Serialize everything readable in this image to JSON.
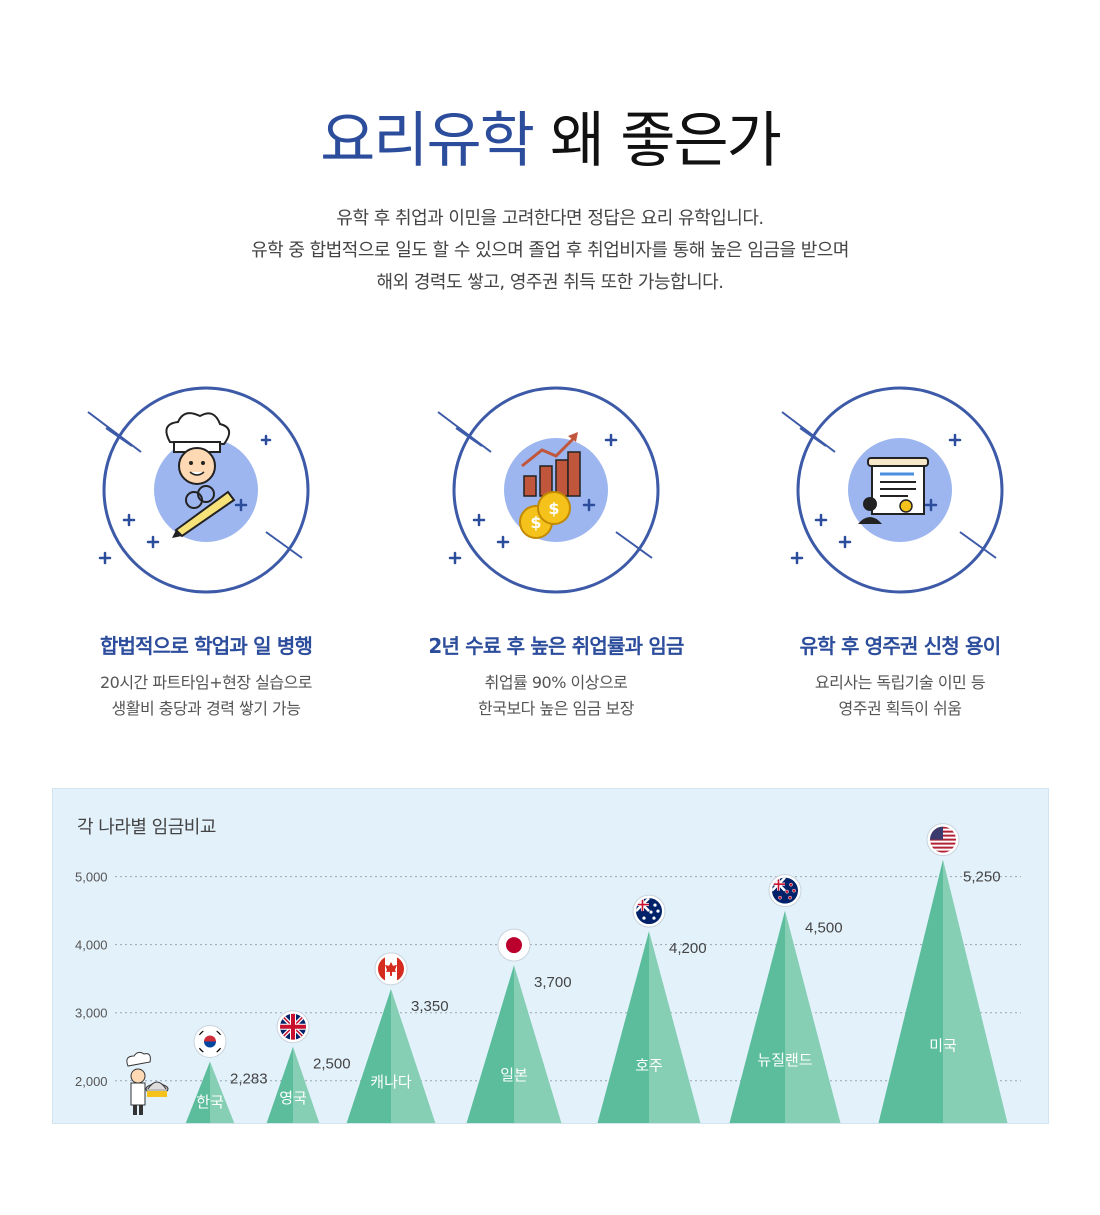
{
  "hero": {
    "title_accent": "요리유학",
    "title_rest": " 왜 좋은가",
    "intro_lines": [
      "유학 후 취업과 이민을 고려한다면 정답은 요리 유학입니다.",
      "유학 중 합법적으로 일도 할 수 있으며 졸업 후 취업비자를 통해 높은 임금을 받으며",
      "해외 경력도 쌓고, 영주권 취득 또한 가능합니다."
    ]
  },
  "features": [
    {
      "icon": "chef-pencil-icon",
      "title": "합법적으로 학업과 일 병행",
      "desc_lines": [
        "20시간 파트타임+현장 실습으로",
        "생활비 충당과 경력 쌓기 가능"
      ]
    },
    {
      "icon": "coins-growth-chart-icon",
      "title": "2년 수료 후 높은 취업률과 임금",
      "desc_lines": [
        "취업률 90% 이상으로",
        "한국보다 높은 임금 보장"
      ]
    },
    {
      "icon": "certificate-person-icon",
      "title": "유학 후 영주권 신청 용이",
      "desc_lines": [
        "요리사는 독립기술 이민 등",
        "영주권 획득이 쉬움"
      ]
    }
  ],
  "colors": {
    "accent": "#2c4c9c",
    "circle_fill": "#9db6ef",
    "ring": "#3d5aa8",
    "mountain_dark": "#5bbd9b",
    "mountain_light": "#86cfb5",
    "chart_bg": "#e3f1fb"
  },
  "chart_data": {
    "type": "bar",
    "title": "각 나라별 임금비교",
    "y_ticks": [
      "5,000",
      "4,000",
      "3,000",
      "2,000"
    ],
    "ylim": [
      1350,
      5700
    ],
    "grid": true,
    "categories": [
      "한국",
      "영국",
      "캐나다",
      "일본",
      "호주",
      "뉴질랜드",
      "미국"
    ],
    "values": [
      2283,
      2500,
      3350,
      3700,
      4200,
      4500,
      5250
    ],
    "value_labels": [
      "2,283",
      "2,500",
      "3,350",
      "3,700",
      "4,200",
      "4,500",
      "5,250"
    ],
    "flags": [
      "korea-flag-icon",
      "uk-flag-icon",
      "canada-flag-icon",
      "japan-flag-icon",
      "australia-flag-icon",
      "new-zealand-flag-icon",
      "usa-flag-icon"
    ]
  }
}
